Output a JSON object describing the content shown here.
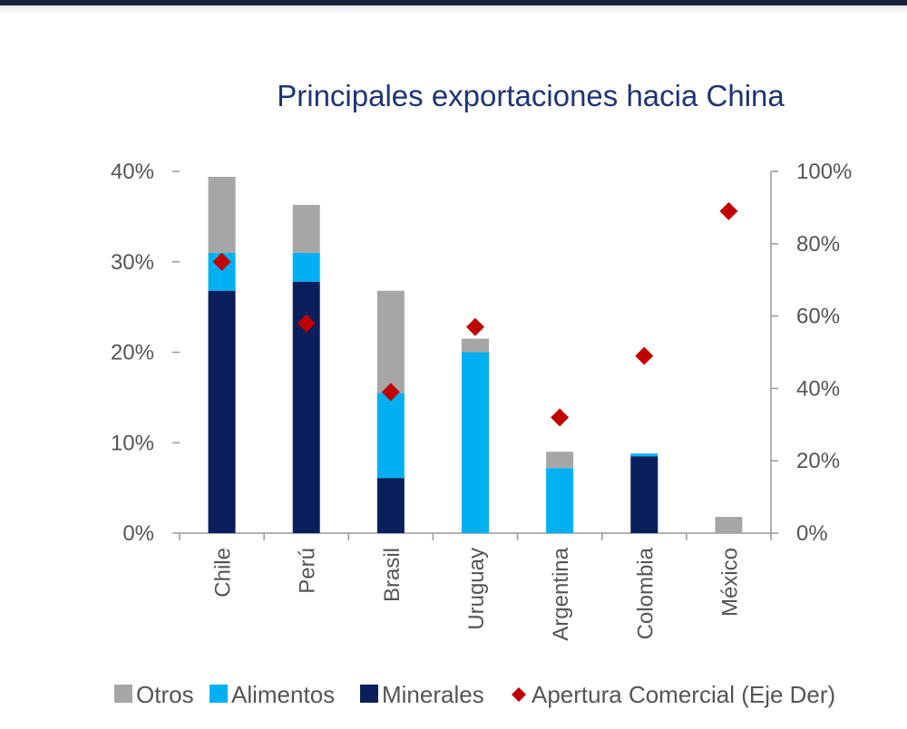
{
  "colors": {
    "otros": "#a6a6a6",
    "alimentos": "#00b0f0",
    "minerales": "#0a1f5c",
    "apertura": "#c00000",
    "axis": "#999999",
    "title": "#1f3473"
  },
  "chart_data": {
    "type": "bar",
    "stacked": true,
    "title": "Principales exportaciones hacia China",
    "categories": [
      "Chile",
      "Perú",
      "Brasil",
      "Uruguay",
      "Argentina",
      "Colombia",
      "México"
    ],
    "series": [
      {
        "name": "Minerales",
        "axis": "left",
        "values": [
          26.8,
          27.8,
          6.1,
          0,
          0,
          8.5,
          0
        ]
      },
      {
        "name": "Alimentos",
        "axis": "left",
        "values": [
          4.2,
          3.2,
          9.4,
          20.0,
          7.2,
          0.3,
          0
        ]
      },
      {
        "name": "Otros",
        "axis": "left",
        "values": [
          8.4,
          5.3,
          11.3,
          1.5,
          1.8,
          0,
          1.8
        ]
      },
      {
        "name": "Apertura Comercial (Eje Der)",
        "type": "scatter",
        "axis": "right",
        "values": [
          75,
          58,
          39,
          57,
          32,
          49,
          89
        ]
      }
    ],
    "yleft": {
      "min": 0,
      "max": 40,
      "ticks": [
        "0%",
        "10%",
        "20%",
        "30%",
        "40%"
      ]
    },
    "yright": {
      "min": 0,
      "max": 100,
      "ticks": [
        "0%",
        "20%",
        "40%",
        "60%",
        "80%",
        "100%"
      ]
    },
    "legend": {
      "position": "bottom",
      "items": [
        "Otros",
        "Alimentos",
        "Minerales",
        "Apertura Comercial (Eje Der)"
      ]
    }
  }
}
